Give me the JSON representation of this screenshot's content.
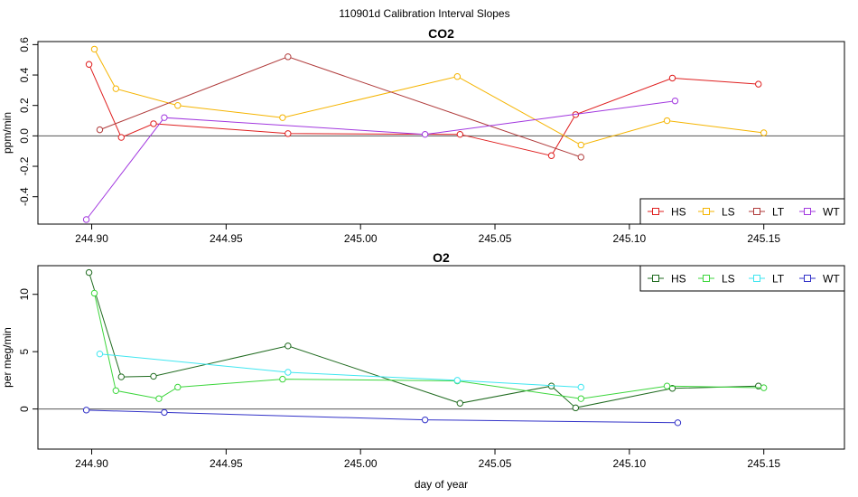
{
  "title": "110901d   Calibration Interval Slopes",
  "chart_data": [
    {
      "type": "line",
      "title": "CO2",
      "xlabel": "",
      "ylabel": "ppm/min",
      "xlim": [
        244.88,
        245.18
      ],
      "ylim": [
        -0.58,
        0.62
      ],
      "xticks": [
        244.9,
        244.95,
        245.0,
        245.05,
        245.1,
        245.15
      ],
      "xtick_labels": [
        "244.90",
        "244.95",
        "245.00",
        "245.05",
        "245.10",
        "245.15"
      ],
      "yticks": [
        -0.4,
        -0.2,
        0.0,
        0.2,
        0.4,
        0.6
      ],
      "ytick_labels": [
        "-0.4",
        "-0.2",
        "0.0",
        "0.2",
        "0.4",
        "0.6"
      ],
      "hline": 0,
      "legend": {
        "placement": "bottom-right",
        "columns": 4
      },
      "series": [
        {
          "name": "HS",
          "color": "#DF1F1F",
          "x": [
            244.899,
            244.911,
            244.923,
            244.973,
            245.037,
            245.071,
            245.08,
            245.116,
            245.148
          ],
          "y": [
            0.47,
            -0.01,
            0.08,
            0.015,
            0.01,
            -0.13,
            0.14,
            0.38,
            0.34
          ]
        },
        {
          "name": "LS",
          "color": "#F5B400",
          "x": [
            244.901,
            244.909,
            244.932,
            244.971,
            245.036,
            245.082,
            245.114,
            245.15
          ],
          "y": [
            0.57,
            0.31,
            0.2,
            0.12,
            0.39,
            -0.06,
            0.1,
            0.02
          ]
        },
        {
          "name": "LT",
          "color": "#B03B3B",
          "x": [
            244.903,
            244.973,
            245.082
          ],
          "y": [
            0.04,
            0.52,
            -0.14
          ]
        },
        {
          "name": "WT",
          "color": "#A238DF",
          "x": [
            244.898,
            244.927,
            245.024,
            245.117
          ],
          "y": [
            -0.55,
            0.12,
            0.01,
            0.23
          ]
        }
      ]
    },
    {
      "type": "line",
      "title": "O2",
      "xlabel": "day of year",
      "ylabel": "per meg/min",
      "xlim": [
        244.88,
        245.18
      ],
      "ylim": [
        -3.5,
        12.5
      ],
      "xticks": [
        244.9,
        244.95,
        245.0,
        245.05,
        245.1,
        245.15
      ],
      "xtick_labels": [
        "244.90",
        "244.95",
        "245.00",
        "245.05",
        "245.10",
        "245.15"
      ],
      "yticks": [
        0,
        5,
        10
      ],
      "ytick_labels": [
        "0",
        "5",
        "10"
      ],
      "hline": 0,
      "legend": {
        "placement": "top-right",
        "columns": 4
      },
      "series": [
        {
          "name": "HS",
          "color": "#206B20",
          "x": [
            244.899,
            244.911,
            244.923,
            244.973,
            245.037,
            245.071,
            245.08,
            245.116,
            245.148
          ],
          "y": [
            11.9,
            2.8,
            2.85,
            5.5,
            0.5,
            2.0,
            0.1,
            1.8,
            2.0
          ]
        },
        {
          "name": "LS",
          "color": "#3CD63C",
          "x": [
            244.901,
            244.909,
            244.925,
            244.932,
            244.971,
            245.036,
            245.082,
            245.114,
            245.15
          ],
          "y": [
            10.1,
            1.6,
            0.9,
            1.9,
            2.6,
            2.45,
            0.9,
            2.0,
            1.85
          ]
        },
        {
          "name": "LT",
          "color": "#3FE6F0",
          "x": [
            244.903,
            244.973,
            245.036,
            245.082
          ],
          "y": [
            4.8,
            3.2,
            2.5,
            1.9
          ]
        },
        {
          "name": "WT",
          "color": "#3232C8",
          "x": [
            244.898,
            244.927,
            245.024,
            245.118
          ],
          "y": [
            -0.1,
            -0.3,
            -0.95,
            -1.2
          ]
        }
      ]
    }
  ]
}
